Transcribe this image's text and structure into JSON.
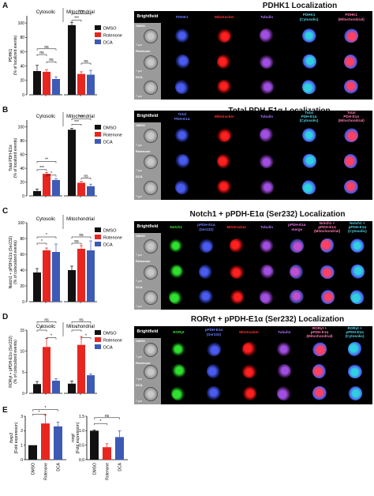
{
  "panels": [
    {
      "letter": "A",
      "title": "PDHK1 Localization",
      "ylabel": "PDHK1\n(% of localized events)",
      "ylabel_lines": [
        "PDHK1",
        "(% of localized events)"
      ],
      "group_labels": [
        "Cytosolic",
        "Mitochondrial"
      ],
      "yticks": [
        "0",
        "20",
        "40",
        "60",
        "80",
        "100"
      ],
      "legend": [
        "DMSO",
        "Rotenone",
        "DCA"
      ],
      "sig": [
        {
          "label": "ns"
        },
        {
          "label": "ns"
        },
        {
          "label": "ns"
        },
        {
          "label": "***"
        },
        {
          "label": "***"
        },
        {
          "label": "ns"
        }
      ],
      "image_headers": [
        "Brightfield",
        "PDHK1",
        "Mitotracker",
        "Tubulin",
        "PDHK1\n(Cytosolic)",
        "PDHK1\n(Mitochondrial)"
      ],
      "row_labels": [
        "DMSO",
        "Rotenone",
        "DCA"
      ],
      "scale_label": "7 µm"
    },
    {
      "letter": "B",
      "title": "Total PDH-E1α Localization",
      "ylabel_lines": [
        "Total PDH-E1α",
        "(% of localized events)"
      ],
      "group_labels": [
        "Cytosolic",
        "Mitochondrial"
      ],
      "yticks": [
        "0",
        "20",
        "40",
        "60",
        "80",
        "100"
      ],
      "legend": [
        "DMSO",
        "Rotenone",
        "DCA"
      ],
      "sig": [
        {
          "label": "**"
        },
        {
          "label": "***"
        },
        {
          "label": "*"
        },
        {
          "label": "***"
        },
        {
          "label": "***"
        },
        {
          "label": "ns"
        }
      ],
      "image_headers": [
        "Brightfield",
        "Total\nPDH-E1α",
        "Mitotracker",
        "Tubulin",
        "Total\nPDH-E1α\n(Cytosolic)",
        "Total\nPDH-E1α\n(Mitochondrial)"
      ],
      "row_labels": [
        "DMSO",
        "Rotenone",
        "DCA"
      ],
      "scale_label": "7 µm"
    },
    {
      "letter": "C",
      "title": "Notch1 + pPDH-E1α (Ser232) Localization",
      "ylabel_lines": [
        "Notch1 + pPDH-E1α (Ser232)",
        "(% of colocalized events)"
      ],
      "group_labels": [
        "Cytosolic",
        "Mitochondrial"
      ],
      "yticks": [
        "0",
        "20",
        "40",
        "60",
        "80",
        "100"
      ],
      "legend": [
        "DMSO",
        "Rotenone",
        "DCA"
      ],
      "sig": [
        {
          "label": "*"
        },
        {
          "label": "*"
        },
        {
          "label": "ns"
        },
        {
          "label": "ns"
        }
      ],
      "image_headers": [
        "Brightfield",
        "Notch1",
        "pPDH-E1α\n(Ser232)",
        "Mitotracker",
        "Tubulin",
        "pPDH-E1α\nmerge",
        "Notch1 +\npPDH-E1α\n(Mitochondrial)",
        "Notch1 +\npPDH-E1α\n(Cytosolic)"
      ],
      "row_labels": [
        "DMSO",
        "Rotenone",
        "DCA"
      ],
      "scale_label": "7 µm"
    },
    {
      "letter": "D",
      "title": "RORγt + pPDH-E1α (Ser232) Localization",
      "ylabel_lines": [
        "RORγt + pPDH-E1α (Ser232)",
        "(% of colocalized events)"
      ],
      "group_labels": [
        "Cytosolic",
        "Mitochondrial"
      ],
      "yticks": [
        "0",
        "5",
        "10",
        "15"
      ],
      "legend": [
        "DMSO",
        "Rotenone",
        "DCA"
      ],
      "sig": [
        {
          "label": "ns"
        },
        {
          "label": "*"
        },
        {
          "label": "*"
        },
        {
          "label": "ns"
        },
        {
          "label": "*"
        },
        {
          "label": "*"
        }
      ],
      "image_headers": [
        "Brightfield",
        "RORγt",
        "pPDH-E1α\n(Ser232)",
        "Mitotracker",
        "Tubulin",
        "RORγt +\npPDH-E1α\n(Mitochondrial)",
        "RORγt +\npPDH-E1α\n(Cytosolic)"
      ],
      "row_labels": [
        "DMSO",
        "Rotenone",
        "DCA"
      ],
      "scale_label": "7 µm"
    },
    {
      "letter": "E"
    }
  ],
  "colors": {
    "dmso": "#111111",
    "rotenone": "#e8251f",
    "dca": "#3d5ab5"
  },
  "chart_data": [
    {
      "type": "bar",
      "panel": "A",
      "ylabel": "PDHK1 (% of localized events)",
      "ylim": [
        0,
        110
      ],
      "categories": [
        "Cytosolic",
        "Mitochondrial"
      ],
      "series": [
        {
          "name": "DMSO",
          "values": [
            33,
            97
          ],
          "err": [
            8,
            4
          ]
        },
        {
          "name": "Rotenone",
          "values": [
            32,
            29
          ],
          "err": [
            3,
            3
          ]
        },
        {
          "name": "DCA",
          "values": [
            22,
            28
          ],
          "err": [
            3,
            6
          ]
        }
      ]
    },
    {
      "type": "bar",
      "panel": "B",
      "ylabel": "Total PDH-E1α (% of localized events)",
      "ylim": [
        0,
        110
      ],
      "categories": [
        "Cytosolic",
        "Mitochondrial"
      ],
      "series": [
        {
          "name": "DMSO",
          "values": [
            7,
            96
          ],
          "err": [
            3,
            2
          ]
        },
        {
          "name": "Rotenone",
          "values": [
            32,
            19
          ],
          "err": [
            2,
            2
          ]
        },
        {
          "name": "DCA",
          "values": [
            23,
            14
          ],
          "err": [
            2,
            3
          ]
        }
      ]
    },
    {
      "type": "bar",
      "panel": "C",
      "ylabel": "Notch1 + pPDH-E1α (Ser232) (% of colocalized events)",
      "ylim": [
        0,
        100
      ],
      "categories": [
        "Cytosolic",
        "Mitochondrial"
      ],
      "series": [
        {
          "name": "DMSO",
          "values": [
            37,
            40
          ],
          "err": [
            5,
            5
          ]
        },
        {
          "name": "Rotenone",
          "values": [
            65,
            67
          ],
          "err": [
            3,
            4
          ]
        },
        {
          "name": "DCA",
          "values": [
            63,
            65
          ],
          "err": [
            10,
            12
          ]
        }
      ]
    },
    {
      "type": "bar",
      "panel": "D",
      "ylabel": "RORγt + pPDH-E1α (Ser232) (% of colocalized events)",
      "ylim": [
        0,
        15
      ],
      "categories": [
        "Cytosolic",
        "Mitochondrial"
      ],
      "series": [
        {
          "name": "DMSO",
          "values": [
            2.2,
            2.3
          ],
          "err": [
            0.6,
            0.6
          ]
        },
        {
          "name": "Rotenone",
          "values": [
            11,
            11.5
          ],
          "err": [
            2,
            2
          ]
        },
        {
          "name": "DCA",
          "values": [
            3,
            4.3
          ],
          "err": [
            0.5,
            0.3
          ]
        }
      ]
    },
    {
      "type": "bar",
      "panel": "E1",
      "ylabel_lines": [
        "foxp3",
        "(Fold expression)"
      ],
      "ylim": [
        0,
        3
      ],
      "yticks": [
        "0",
        "1",
        "2",
        "3"
      ],
      "categories": [
        "DMSO",
        "Rotenone",
        "DCA"
      ],
      "values": [
        1,
        2.5,
        2.3
      ],
      "err": [
        0,
        0.6,
        0.3
      ],
      "sig": [
        {
          "label": "*"
        },
        {
          "label": "*"
        }
      ]
    },
    {
      "type": "bar",
      "panel": "E2",
      "ylabel_lines": [
        "rorgt",
        "(Fold expression)"
      ],
      "ylim": [
        0,
        1.5
      ],
      "yticks": [
        "0.0",
        "0.5",
        "1.0",
        "1.5"
      ],
      "categories": [
        "DMSO",
        "Rotenone",
        "DCA"
      ],
      "values": [
        1,
        0.43,
        0.78
      ],
      "err": [
        0.02,
        0.12,
        0.22
      ],
      "sig": [
        {
          "label": "*"
        },
        {
          "label": "ns"
        }
      ]
    }
  ]
}
